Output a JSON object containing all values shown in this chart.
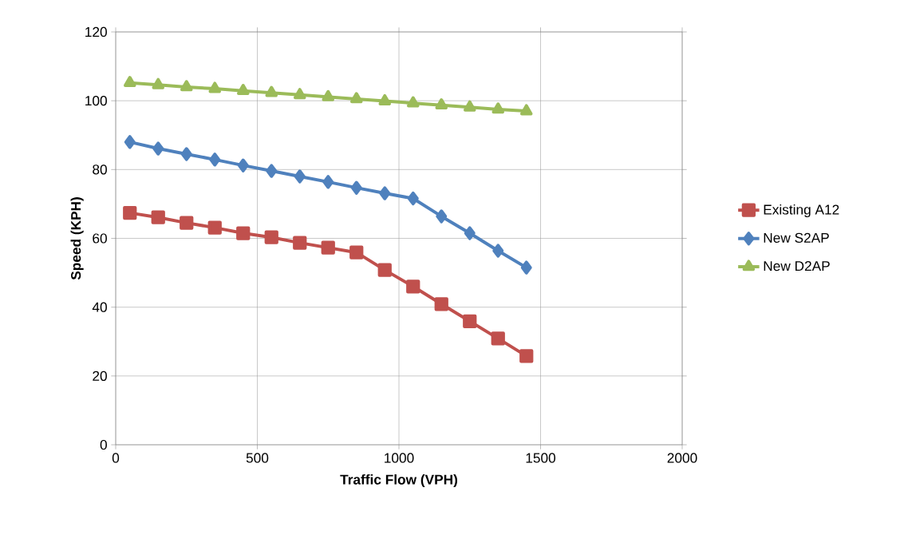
{
  "chart_data": {
    "type": "line",
    "xlabel": "Traffic Flow (VPH)",
    "ylabel": "Speed (KPH)",
    "x": [
      50,
      150,
      250,
      350,
      450,
      550,
      650,
      750,
      850,
      950,
      1050,
      1150,
      1250,
      1350,
      1450
    ],
    "series": [
      {
        "name": "Existing A12",
        "color": "#c0504d",
        "marker": "square",
        "values": [
          67.4,
          66.1,
          64.5,
          63.1,
          61.5,
          60.3,
          58.7,
          57.3,
          55.9,
          50.8,
          46.0,
          40.9,
          35.9,
          30.9,
          25.8
        ]
      },
      {
        "name": "New S2AP",
        "color": "#4f81bd",
        "marker": "diamond",
        "values": [
          88.0,
          86.1,
          84.5,
          82.9,
          81.2,
          79.6,
          78.0,
          76.4,
          74.7,
          73.1,
          71.6,
          66.4,
          61.5,
          56.4,
          51.5
        ]
      },
      {
        "name": "New D2AP",
        "color": "#9bbb59",
        "marker": "triangle",
        "values": [
          105.2,
          104.6,
          104.0,
          103.5,
          102.9,
          102.3,
          101.7,
          101.1,
          100.5,
          99.9,
          99.3,
          98.7,
          98.1,
          97.5,
          97.0
        ]
      }
    ],
    "xlim": [
      0,
      2000
    ],
    "xticks": [
      0,
      500,
      1000,
      1500,
      2000
    ],
    "ylim": [
      0,
      120
    ],
    "yticks": [
      0,
      20,
      40,
      60,
      80,
      100,
      120
    ],
    "grid": true,
    "legend": "right",
    "line_style": "solid"
  }
}
